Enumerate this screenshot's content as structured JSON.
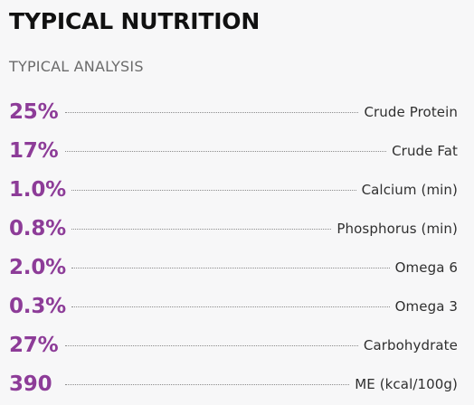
{
  "page": {
    "title": "TYPICAL NUTRITION",
    "subtitle": "TYPICAL ANALYSIS"
  },
  "analysis": {
    "rows": [
      {
        "value": "25%",
        "label": "Crude Protein"
      },
      {
        "value": "17%",
        "label": "Crude Fat"
      },
      {
        "value": "1.0%",
        "label": "Calcium (min)"
      },
      {
        "value": "0.8%",
        "label": "Phosphorus (min)"
      },
      {
        "value": "2.0%",
        "label": "Omega 6"
      },
      {
        "value": "0.3%",
        "label": "Omega 3"
      },
      {
        "value": "27%",
        "label": "Carbohydrate"
      },
      {
        "value": "390",
        "label": "ME (kcal/100g)"
      }
    ]
  },
  "colors": {
    "accent": "#8d3c98",
    "background": "#f7f7f8",
    "title": "#111111",
    "subtitle": "#6b6b6b",
    "text": "#2f2f2f",
    "leader": "#8c8c8c"
  }
}
